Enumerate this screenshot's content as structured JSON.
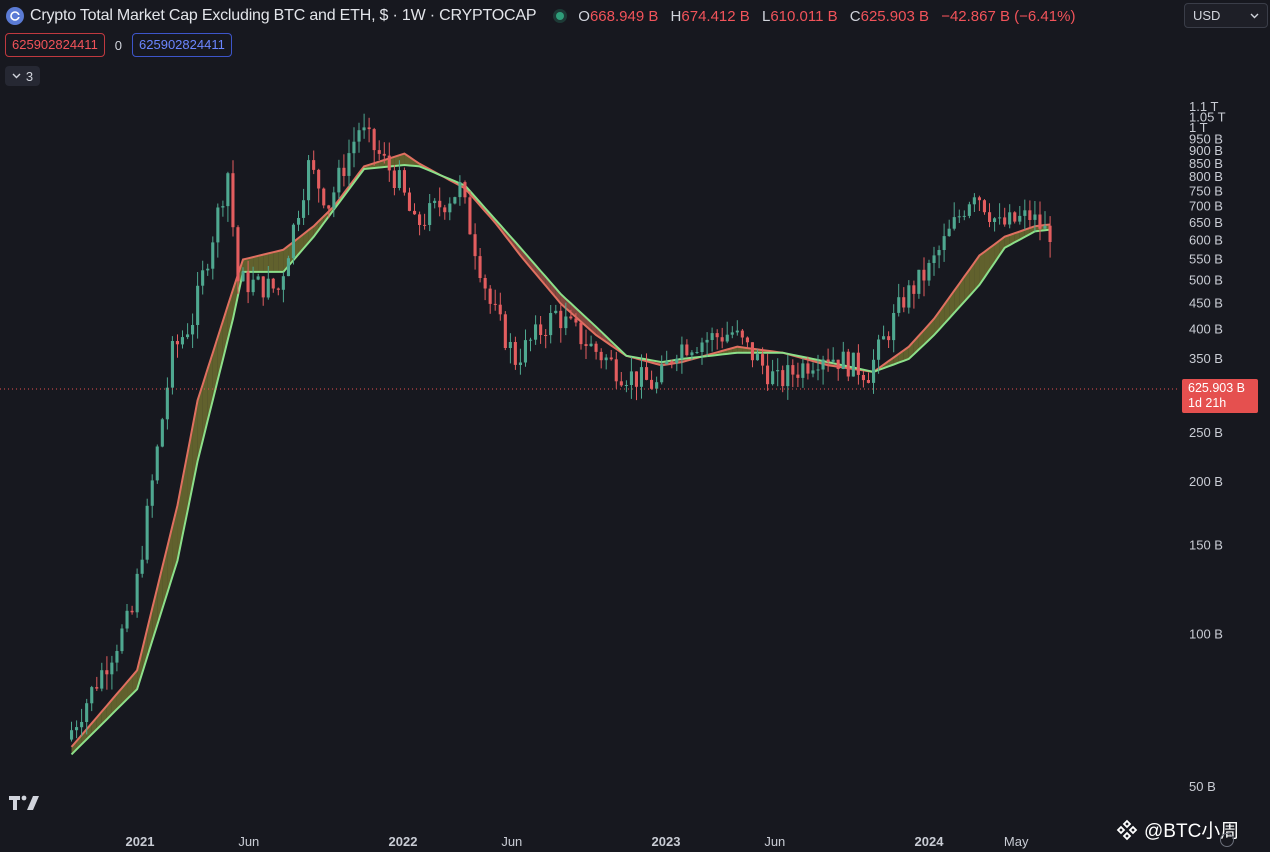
{
  "header": {
    "title": "Crypto Total Market Cap Excluding BTC and ETH, $ · 1W · CRYPTOCAP",
    "ohlc": [
      {
        "key": "O",
        "value": "668.949 B"
      },
      {
        "key": "H",
        "value": "674.412 B"
      },
      {
        "key": "L",
        "value": "610.011 B"
      },
      {
        "key": "C",
        "value": "625.903 B"
      }
    ],
    "change": "−42.867 B (−6.41%)"
  },
  "indicator": {
    "value_1": "625902824411",
    "zero": "0",
    "value_2": "625902824411",
    "collapsed_count": "3"
  },
  "currency": "USD",
  "current_price": {
    "label": "625.903 B",
    "countdown": "1d 21h"
  },
  "watermark": "@BTC小周",
  "colors": {
    "background": "#17181f",
    "up": "#4fa890",
    "down": "#e35d5f",
    "ma_fast": "#e07060",
    "ma_slow": "#8ce08a",
    "cloud_bear": "#7b7a33",
    "cloud_bull": "#a8564a"
  },
  "chart_data": {
    "type": "candlestick",
    "interval": "1W",
    "y_scale": "log",
    "y_tick_labels": [
      "50 B",
      "100 B",
      "150 B",
      "200 B",
      "250 B",
      "300 B",
      "350 B",
      "400 B",
      "450 B",
      "500 B",
      "550 B",
      "600 B",
      "650 B",
      "700 B",
      "750 B",
      "800 B",
      "850 B",
      "900 B",
      "950 B",
      "1 T",
      "1.05 T",
      "1.1 T"
    ],
    "x_tick_labels": [
      "2021",
      "Jun",
      "2022",
      "Jun",
      "2023",
      "Jun",
      "2024",
      "May"
    ],
    "series_key_points": {
      "price": [
        [
          "2020-09-28",
          62
        ],
        [
          "2020-12-28",
          110
        ],
        [
          "2021-02-22",
          360
        ],
        [
          "2021-03-22",
          420
        ],
        [
          "2021-05-10",
          820
        ],
        [
          "2021-05-24",
          500
        ],
        [
          "2021-07-19",
          480
        ],
        [
          "2021-08-30",
          840
        ],
        [
          "2021-09-27",
          710
        ],
        [
          "2021-11-08",
          1000
        ],
        [
          "2022-01-03",
          780
        ],
        [
          "2022-01-24",
          640
        ],
        [
          "2022-03-28",
          760
        ],
        [
          "2022-05-09",
          450
        ],
        [
          "2022-06-13",
          350
        ],
        [
          "2022-08-08",
          430
        ],
        [
          "2022-09-26",
          370
        ],
        [
          "2022-11-07",
          330
        ],
        [
          "2022-12-26",
          310
        ],
        [
          "2023-01-23",
          370
        ],
        [
          "2023-04-10",
          395
        ],
        [
          "2023-06-12",
          315
        ],
        [
          "2023-08-14",
          360
        ],
        [
          "2023-10-16",
          330
        ],
        [
          "2023-12-04",
          460
        ],
        [
          "2024-01-08",
          525
        ],
        [
          "2024-03-11",
          760
        ],
        [
          "2024-04-15",
          640
        ],
        [
          "2024-05-27",
          670
        ],
        [
          "2024-06-17",
          626
        ]
      ],
      "ma_fast": [
        [
          "2020-09-28",
          60
        ],
        [
          "2020-12-28",
          85
        ],
        [
          "2021-02-22",
          180
        ],
        [
          "2021-03-22",
          290
        ],
        [
          "2021-05-10",
          480
        ],
        [
          "2021-05-24",
          550
        ],
        [
          "2021-07-19",
          575
        ],
        [
          "2021-08-30",
          640
        ],
        [
          "2021-09-27",
          700
        ],
        [
          "2021-11-08",
          840
        ],
        [
          "2022-01-03",
          890
        ],
        [
          "2022-01-24",
          850
        ],
        [
          "2022-03-28",
          760
        ],
        [
          "2022-05-09",
          650
        ],
        [
          "2022-06-13",
          560
        ],
        [
          "2022-08-08",
          450
        ],
        [
          "2022-09-26",
          390
        ],
        [
          "2022-11-07",
          355
        ],
        [
          "2022-12-26",
          340
        ],
        [
          "2023-01-23",
          345
        ],
        [
          "2023-04-10",
          370
        ],
        [
          "2023-06-12",
          360
        ],
        [
          "2023-08-14",
          340
        ],
        [
          "2023-10-16",
          330
        ],
        [
          "2023-12-04",
          370
        ],
        [
          "2024-01-08",
          420
        ],
        [
          "2024-03-11",
          560
        ],
        [
          "2024-04-15",
          610
        ],
        [
          "2024-05-27",
          640
        ],
        [
          "2024-06-17",
          645
        ]
      ],
      "ma_slow": [
        [
          "2020-09-28",
          58
        ],
        [
          "2020-12-28",
          78
        ],
        [
          "2021-02-22",
          140
        ],
        [
          "2021-03-22",
          220
        ],
        [
          "2021-05-10",
          420
        ],
        [
          "2021-05-24",
          520
        ],
        [
          "2021-07-19",
          520
        ],
        [
          "2021-08-30",
          610
        ],
        [
          "2021-09-27",
          690
        ],
        [
          "2021-11-08",
          830
        ],
        [
          "2022-01-03",
          845
        ],
        [
          "2022-01-24",
          840
        ],
        [
          "2022-03-28",
          770
        ],
        [
          "2022-05-09",
          660
        ],
        [
          "2022-06-13",
          580
        ],
        [
          "2022-08-08",
          470
        ],
        [
          "2022-09-26",
          405
        ],
        [
          "2022-11-07",
          355
        ],
        [
          "2022-12-26",
          345
        ],
        [
          "2023-01-23",
          350
        ],
        [
          "2023-04-10",
          360
        ],
        [
          "2023-06-12",
          360
        ],
        [
          "2023-08-14",
          345
        ],
        [
          "2023-10-16",
          330
        ],
        [
          "2023-12-04",
          350
        ],
        [
          "2024-01-08",
          390
        ],
        [
          "2024-03-11",
          490
        ],
        [
          "2024-04-15",
          580
        ],
        [
          "2024-05-27",
          625
        ],
        [
          "2024-06-17",
          630
        ]
      ]
    }
  }
}
